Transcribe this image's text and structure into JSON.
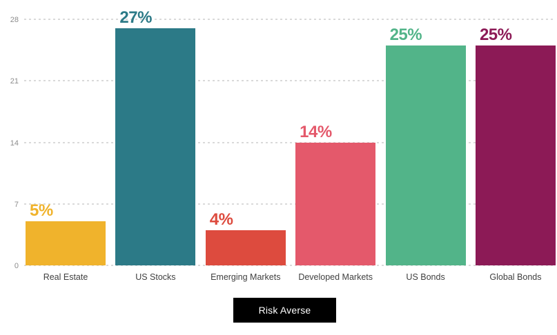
{
  "chart_data": {
    "type": "bar",
    "title": "",
    "xlabel": "",
    "ylabel": "",
    "categories": [
      "Real Estate",
      "US Stocks",
      "Emerging Markets",
      "Developed Markets",
      "US Bonds",
      "Global Bonds"
    ],
    "values": [
      5,
      27,
      4,
      14,
      25,
      25
    ],
    "value_labels": [
      "5%",
      "27%",
      "4%",
      "14%",
      "25%",
      "25%"
    ],
    "bar_colors": [
      "#F0B32C",
      "#2C7A87",
      "#DD4B3E",
      "#E4596B",
      "#52B489",
      "#8C1A56"
    ],
    "y_ticks": [
      0,
      7,
      14,
      21,
      28
    ],
    "ylim": [
      0,
      28
    ],
    "grid": "horizontal-dashed",
    "gridline_color": "#d9d9d9",
    "tick_label_color": "#8c8c8c",
    "category_label_color": "#3f3f3f",
    "legend": "none"
  },
  "footer": {
    "button_label": "Risk Averse",
    "button_bg": "#000000",
    "button_text_color": "#ffffff"
  }
}
